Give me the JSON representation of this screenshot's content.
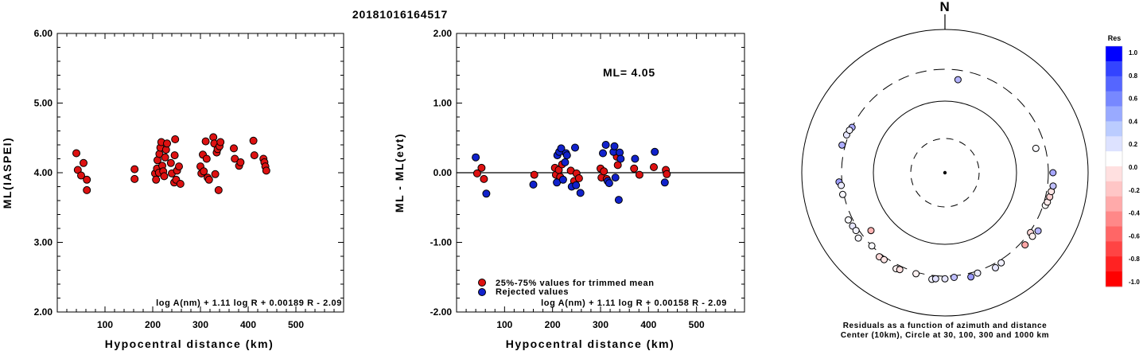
{
  "title": "20181016164517",
  "chart_data": [
    {
      "type": "scatter",
      "ylabel": "ML(IASPEI)",
      "xlabel": "Hypocentral distance (km)",
      "xlim": [
        0,
        600
      ],
      "ylim": [
        2.0,
        6.0
      ],
      "xticks": [
        "100",
        "200",
        "300",
        "400",
        "500"
      ],
      "yticks": [
        "2.00",
        "3.00",
        "4.00",
        "5.00",
        "6.00"
      ],
      "formula": "log A(nm) + 1.11 log R + 0.00189 R - 2.09",
      "point_color": "#dd1111",
      "points": [
        [
          40,
          4.28
        ],
        [
          43,
          4.04
        ],
        [
          50,
          3.96
        ],
        [
          55,
          4.14
        ],
        [
          62,
          3.9
        ],
        [
          62,
          3.75
        ],
        [
          162,
          4.05
        ],
        [
          162,
          3.91
        ],
        [
          205,
          3.99
        ],
        [
          207,
          3.9
        ],
        [
          209,
          4.06
        ],
        [
          210,
          4.18
        ],
        [
          213,
          4.0
        ],
        [
          214,
          4.27
        ],
        [
          216,
          4.36
        ],
        [
          218,
          4.44
        ],
        [
          220,
          4.1
        ],
        [
          222,
          4.02
        ],
        [
          224,
          3.95
        ],
        [
          226,
          4.22
        ],
        [
          228,
          4.33
        ],
        [
          230,
          4.42
        ],
        [
          238,
          4.14
        ],
        [
          240,
          3.99
        ],
        [
          245,
          3.86
        ],
        [
          246,
          4.25
        ],
        [
          247,
          4.48
        ],
        [
          249,
          3.9
        ],
        [
          251,
          4.03
        ],
        [
          255,
          4.09
        ],
        [
          258,
          3.84
        ],
        [
          300,
          4.09
        ],
        [
          302,
          3.99
        ],
        [
          305,
          4.26
        ],
        [
          307,
          4.02
        ],
        [
          311,
          4.45
        ],
        [
          313,
          4.2
        ],
        [
          315,
          3.93
        ],
        [
          318,
          3.9
        ],
        [
          327,
          4.51
        ],
        [
          329,
          4.42
        ],
        [
          331,
          3.98
        ],
        [
          334,
          4.29
        ],
        [
          336,
          4.34
        ],
        [
          338,
          3.75
        ],
        [
          340,
          4.38
        ],
        [
          342,
          4.44
        ],
        [
          370,
          4.35
        ],
        [
          372,
          4.2
        ],
        [
          381,
          4.1
        ],
        [
          384,
          4.15
        ],
        [
          411,
          4.46
        ],
        [
          413,
          4.25
        ],
        [
          432,
          4.2
        ],
        [
          434,
          4.15
        ],
        [
          436,
          4.09
        ],
        [
          438,
          4.03
        ]
      ]
    },
    {
      "type": "scatter",
      "ylabel": "ML - ML(evt)",
      "xlabel": "Hypocentral distance (km)",
      "xlim": [
        0,
        600
      ],
      "ylim": [
        -2.0,
        2.0
      ],
      "xticks": [
        "100",
        "200",
        "300",
        "400",
        "500"
      ],
      "yticks": [
        "-2.00",
        "-1.00",
        "0.00",
        "1.00",
        "2.00"
      ],
      "annotation": "ML= 4.05",
      "formula": "log A(nm) + 1.11 log R + 0.00158 R - 2.09",
      "legend": [
        "25%-75% values for trimmed mean",
        "Rejected values"
      ],
      "series": [
        {
          "name": "25%-75% values for trimmed mean",
          "color": "#dd1111",
          "points": [
            [
              43,
              -0.01
            ],
            [
              52,
              0.07
            ],
            [
              57,
              -0.09
            ],
            [
              162,
              -0.03
            ],
            [
              205,
              0.07
            ],
            [
              207,
              -0.03
            ],
            [
              213,
              0.04
            ],
            [
              216,
              -0.06
            ],
            [
              220,
              0.12
            ],
            [
              238,
              0.03
            ],
            [
              245,
              -0.12
            ],
            [
              250,
              -0.01
            ],
            [
              255,
              -0.08
            ],
            [
              300,
              0.06
            ],
            [
              302,
              -0.07
            ],
            [
              307,
              0.02
            ],
            [
              313,
              -0.09
            ],
            [
              334,
              0.23
            ],
            [
              336,
              0.11
            ],
            [
              370,
              0.06
            ],
            [
              381,
              -0.03
            ],
            [
              411,
              0.08
            ],
            [
              436,
              0.04
            ],
            [
              438,
              -0.02
            ]
          ]
        },
        {
          "name": "Rejected values",
          "color": "#1122cc",
          "points": [
            [
              40,
              0.22
            ],
            [
              62,
              -0.3
            ],
            [
              160,
              -0.17
            ],
            [
              209,
              -0.14
            ],
            [
              210,
              0.25
            ],
            [
              214,
              0.3
            ],
            [
              218,
              0.35
            ],
            [
              222,
              -0.1
            ],
            [
              226,
              0.15
            ],
            [
              228,
              0.28
            ],
            [
              230,
              0.25
            ],
            [
              240,
              -0.2
            ],
            [
              247,
              0.36
            ],
            [
              249,
              -0.18
            ],
            [
              258,
              -0.29
            ],
            [
              305,
              0.28
            ],
            [
              311,
              0.4
            ],
            [
              315,
              -0.12
            ],
            [
              318,
              -0.15
            ],
            [
              327,
              0.3
            ],
            [
              329,
              0.38
            ],
            [
              331,
              -0.07
            ],
            [
              338,
              -0.39
            ],
            [
              340,
              0.29
            ],
            [
              342,
              0.2
            ],
            [
              372,
              0.2
            ],
            [
              413,
              0.3
            ],
            [
              434,
              -0.14
            ]
          ]
        }
      ]
    },
    {
      "type": "scatter",
      "subtype": "polar residual map",
      "north_label": "N",
      "caption_line1": "Residuals as a function of azimuth and distance",
      "caption_line2": "Center (10km), Circle at 30, 100, 300 and 1000 km",
      "colorbar_title": "Res",
      "colorbar_ticks": [
        "1.0",
        "0.8",
        "0.6",
        "0.4",
        "0.2",
        "0.0",
        "-0.2",
        "-0.4",
        "-0.6",
        "-0.8",
        "-1.0"
      ],
      "colorbar_colors": [
        "#0000ff",
        "#3344ff",
        "#5566ff",
        "#7788ff",
        "#99aaff",
        "#bbccff",
        "#dde2ff",
        "#ffffff",
        "#ffe0e0",
        "#ffc6c6",
        "#ffaaaa",
        "#ff8888",
        "#ff6666",
        "#ff4444",
        "#ff2222",
        "#ff0000"
      ],
      "stations": [
        {
          "az": 8,
          "dist": 216,
          "res": 0.3
        },
        {
          "az": 75,
          "dist": 218,
          "res": 0.02
        },
        {
          "az": 285,
          "dist": 330,
          "res": 0.32
        },
        {
          "az": 296,
          "dist": 300,
          "res": 0.33
        },
        {
          "az": 291,
          "dist": 318,
          "res": 0.1
        },
        {
          "az": 294,
          "dist": 310,
          "res": 0.05
        },
        {
          "az": 265,
          "dist": 327,
          "res": 0.38
        },
        {
          "az": 263,
          "dist": 310,
          "res": 0.07
        },
        {
          "az": 258,
          "dist": 310,
          "res": 0.03
        },
        {
          "az": 232,
          "dist": 216,
          "res": -0.3
        },
        {
          "az": 244,
          "dist": 340,
          "res": 0.02
        },
        {
          "az": 240,
          "dist": 331,
          "res": 0.1
        },
        {
          "az": 233,
          "dist": 350,
          "res": 0.04
        },
        {
          "az": 237,
          "dist": 325,
          "res": 0.05
        },
        {
          "az": 225,
          "dist": 300,
          "res": 0.02
        },
        {
          "az": 218,
          "dist": 330,
          "res": -0.15
        },
        {
          "az": 215,
          "dist": 325,
          "res": -0.1
        },
        {
          "az": 207,
          "dist": 341,
          "res": -0.05
        },
        {
          "az": 205,
          "dist": 333,
          "res": -0.12
        },
        {
          "az": 196,
          "dist": 315,
          "res": -0.05
        },
        {
          "az": 187,
          "dist": 338,
          "res": 0.05
        },
        {
          "az": 185,
          "dist": 328,
          "res": 0.12
        },
        {
          "az": 180,
          "dist": 325,
          "res": 0.1
        },
        {
          "az": 175,
          "dist": 315,
          "res": 0.25
        },
        {
          "az": 166,
          "dist": 338,
          "res": 0.4
        },
        {
          "az": 162,
          "dist": 319,
          "res": 0.08
        },
        {
          "az": 152,
          "dist": 340,
          "res": 0.1
        },
        {
          "az": 148,
          "dist": 326,
          "res": 0.05
        },
        {
          "az": 132,
          "dist": 342,
          "res": -0.35
        },
        {
          "az": 125,
          "dist": 310,
          "res": -0.15
        },
        {
          "az": 126,
          "dist": 346,
          "res": -0.05
        },
        {
          "az": 122,
          "dist": 364,
          "res": 0.3
        },
        {
          "az": 108,
          "dist": 320,
          "res": 0.0
        },
        {
          "az": 106,
          "dist": 330,
          "res": -0.08
        },
        {
          "az": 103,
          "dist": 340,
          "res": -0.18
        },
        {
          "az": 100,
          "dist": 345,
          "res": -0.1
        },
        {
          "az": 97,
          "dist": 355,
          "res": 0.25
        },
        {
          "az": 90,
          "dist": 345,
          "res": 0.35
        }
      ]
    }
  ]
}
